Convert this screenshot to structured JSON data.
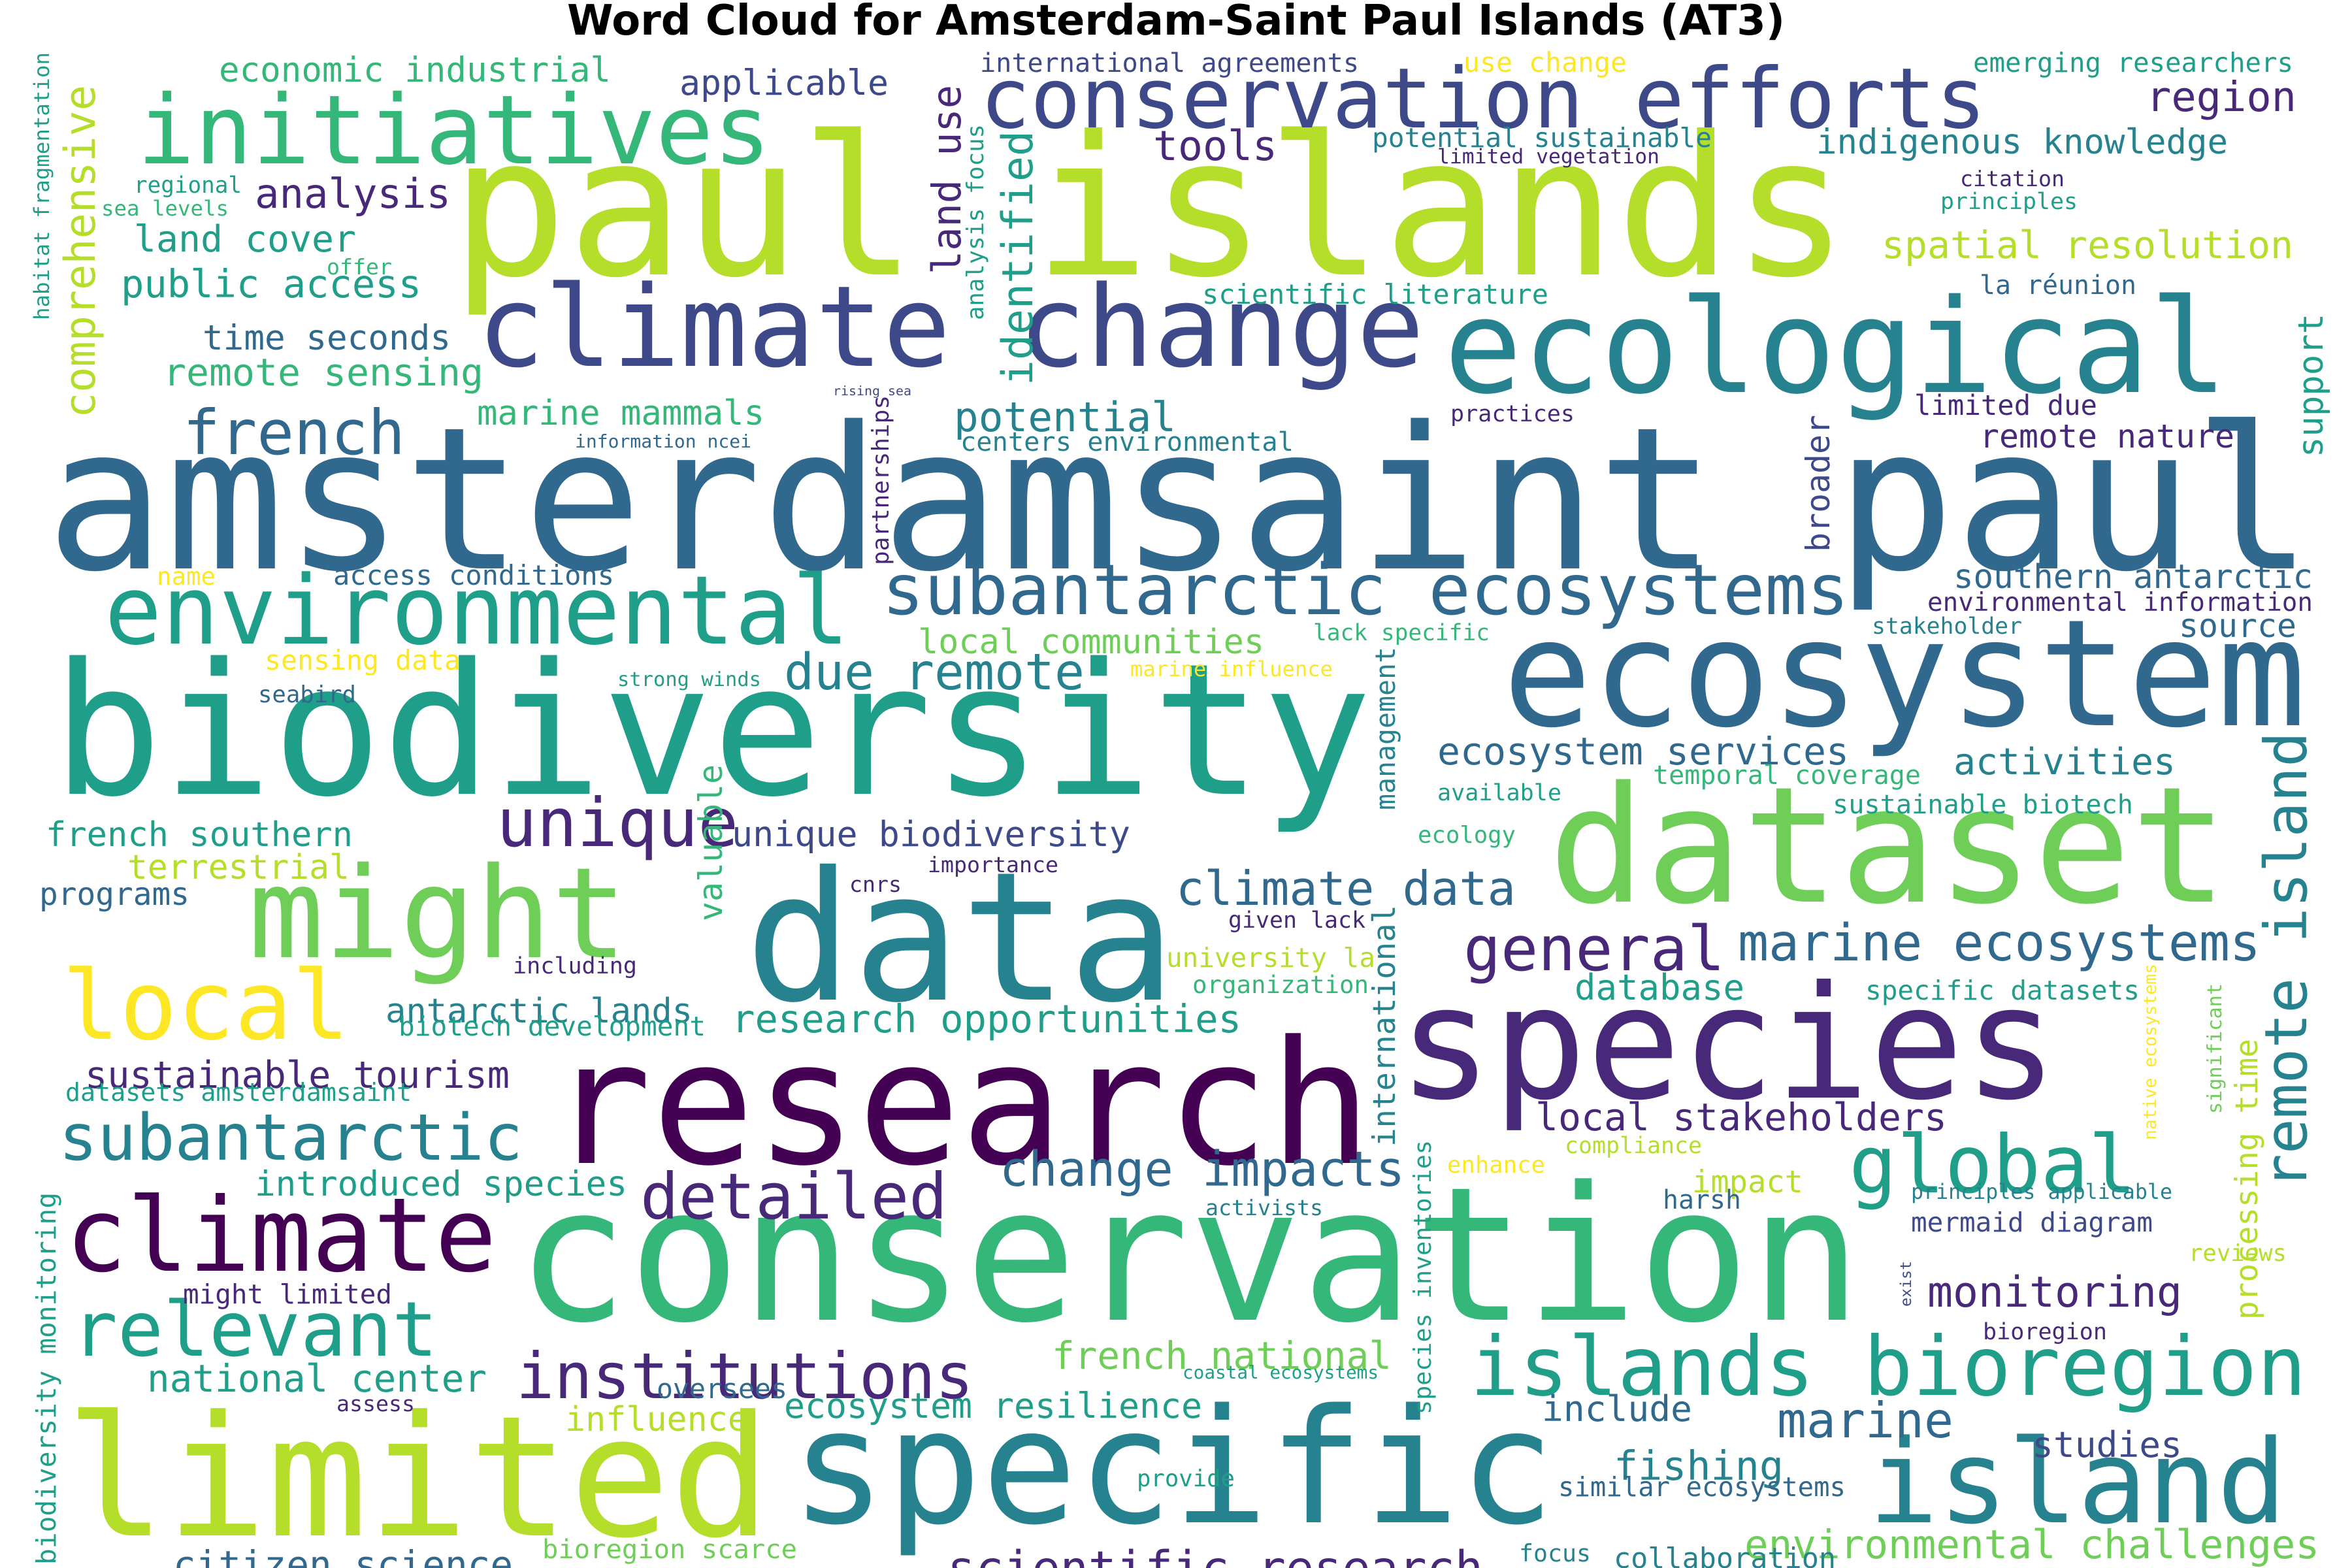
{
  "title": "Word Cloud for Amsterdam-Saint Paul Islands (AT3)",
  "colors": {
    "purple_dark": "#440154",
    "purple": "#482878",
    "indigo": "#3e4989",
    "blue": "#31688e",
    "teal": "#26828e",
    "teal_green": "#1f9e89",
    "green": "#35b779",
    "lime": "#6ece58",
    "yellow_green": "#b5de2b",
    "yellow": "#fde725"
  },
  "words": [
    {
      "text": "amsterdamsaint paul",
      "color": "blue"
    },
    {
      "text": "paul islands",
      "color": "yellow_green"
    },
    {
      "text": "biodiversity",
      "color": "teal_green"
    },
    {
      "text": "conservation",
      "color": "green"
    },
    {
      "text": "research",
      "color": "purple_dark"
    },
    {
      "text": "specific",
      "color": "teal"
    },
    {
      "text": "limited",
      "color": "yellow_green"
    },
    {
      "text": "species",
      "color": "purple"
    },
    {
      "text": "ecosystem",
      "color": "blue"
    },
    {
      "text": "data",
      "color": "teal"
    },
    {
      "text": "dataset",
      "color": "lime"
    },
    {
      "text": "ecological",
      "color": "teal"
    },
    {
      "text": "climate",
      "color": "purple_dark"
    },
    {
      "text": "climate change",
      "color": "indigo"
    },
    {
      "text": "conservation efforts",
      "color": "indigo"
    },
    {
      "text": "initiatives",
      "color": "green"
    },
    {
      "text": "environmental",
      "color": "teal_green"
    },
    {
      "text": "might",
      "color": "lime"
    },
    {
      "text": "local",
      "color": "yellow"
    },
    {
      "text": "islands bioregion",
      "color": "teal_green"
    },
    {
      "text": "remote island",
      "color": "teal"
    },
    {
      "text": "subantarctic ecosystems",
      "color": "blue"
    },
    {
      "text": "island",
      "color": "teal"
    },
    {
      "text": "relevant",
      "color": "teal_green"
    },
    {
      "text": "subantarctic",
      "color": "teal"
    },
    {
      "text": "global",
      "color": "teal_green"
    },
    {
      "text": "institutions",
      "color": "purple"
    },
    {
      "text": "general",
      "color": "purple"
    },
    {
      "text": "french",
      "color": "blue"
    },
    {
      "text": "detailed",
      "color": "purple"
    },
    {
      "text": "unique biodiversity",
      "color": "indigo"
    },
    {
      "text": "unique",
      "color": "purple"
    },
    {
      "text": "marine ecosystems",
      "color": "blue"
    },
    {
      "text": "climate data",
      "color": "blue"
    },
    {
      "text": "change impacts",
      "color": "blue"
    },
    {
      "text": "scientific research",
      "color": "purple"
    },
    {
      "text": "due remote",
      "color": "teal"
    },
    {
      "text": "potential",
      "color": "teal"
    },
    {
      "text": "research opportunities",
      "color": "teal_green"
    },
    {
      "text": "monitoring",
      "color": "purple"
    },
    {
      "text": "activities",
      "color": "teal"
    },
    {
      "text": "marine",
      "color": "blue"
    },
    {
      "text": "fishing",
      "color": "teal"
    },
    {
      "text": "studies",
      "color": "indigo"
    },
    {
      "text": "impact",
      "color": "yellow_green"
    },
    {
      "text": "ecosystem services",
      "color": "blue"
    },
    {
      "text": "french southern",
      "color": "teal_green"
    },
    {
      "text": "antarctic lands",
      "color": "teal"
    },
    {
      "text": "sustainable tourism",
      "color": "purple"
    },
    {
      "text": "introduced species",
      "color": "teal_green"
    },
    {
      "text": "national center",
      "color": "teal_green"
    },
    {
      "text": "citizen science",
      "color": "blue"
    },
    {
      "text": "french national",
      "color": "lime"
    },
    {
      "text": "ecosystem resilience",
      "color": "teal_green"
    },
    {
      "text": "environmental challenges",
      "color": "lime"
    },
    {
      "text": "local stakeholders",
      "color": "purple"
    },
    {
      "text": "local communities",
      "color": "lime"
    },
    {
      "text": "spatial resolution",
      "color": "yellow_green"
    },
    {
      "text": "indigenous knowledge",
      "color": "teal"
    },
    {
      "text": "region",
      "color": "purple"
    },
    {
      "text": "analysis",
      "color": "purple"
    },
    {
      "text": "land cover",
      "color": "teal_green"
    },
    {
      "text": "public access",
      "color": "teal_green"
    },
    {
      "text": "time seconds",
      "color": "blue"
    },
    {
      "text": "remote sensing",
      "color": "green"
    },
    {
      "text": "marine mammals",
      "color": "green"
    },
    {
      "text": "economic industrial",
      "color": "green"
    },
    {
      "text": "applicable",
      "color": "indigo"
    },
    {
      "text": "tools",
      "color": "purple"
    },
    {
      "text": "land use",
      "color": "purple"
    },
    {
      "text": "identified",
      "color": "teal_green"
    },
    {
      "text": "comprehensive",
      "color": "yellow_green"
    },
    {
      "text": "international agreements",
      "color": "indigo"
    },
    {
      "text": "use change",
      "color": "yellow"
    },
    {
      "text": "emerging researchers",
      "color": "teal_green"
    },
    {
      "text": "potential sustainable",
      "color": "teal"
    },
    {
      "text": "limited vegetation",
      "color": "purple"
    },
    {
      "text": "scientific literature",
      "color": "teal_green"
    },
    {
      "text": "la réunion",
      "color": "blue"
    },
    {
      "text": "citation",
      "color": "purple"
    },
    {
      "text": "principles",
      "color": "teal_green"
    },
    {
      "text": "support",
      "color": "teal_green"
    },
    {
      "text": "limited due",
      "color": "purple"
    },
    {
      "text": "remote nature",
      "color": "purple"
    },
    {
      "text": "broader",
      "color": "indigo"
    },
    {
      "text": "practices",
      "color": "purple"
    },
    {
      "text": "rising sea",
      "color": "indigo"
    },
    {
      "text": "partnerships",
      "color": "purple"
    },
    {
      "text": "information ncei",
      "color": "blue"
    },
    {
      "text": "centers environmental",
      "color": "teal"
    },
    {
      "text": "southern antarctic",
      "color": "blue"
    },
    {
      "text": "environmental information",
      "color": "purple"
    },
    {
      "text": "source",
      "color": "blue"
    },
    {
      "text": "stakeholder",
      "color": "teal"
    },
    {
      "text": "lack specific",
      "color": "green"
    },
    {
      "text": "access conditions",
      "color": "blue"
    },
    {
      "text": "name",
      "color": "yellow"
    },
    {
      "text": "sensing data",
      "color": "yellow"
    },
    {
      "text": "seabird",
      "color": "blue"
    },
    {
      "text": "strong winds",
      "color": "teal_green"
    },
    {
      "text": "marine influence",
      "color": "yellow"
    },
    {
      "text": "management",
      "color": "teal"
    },
    {
      "text": "international",
      "color": "teal"
    },
    {
      "text": "valuable",
      "color": "green"
    },
    {
      "text": "available",
      "color": "teal_green"
    },
    {
      "text": "temporal coverage",
      "color": "green"
    },
    {
      "text": "sustainable biotech",
      "color": "teal_green"
    },
    {
      "text": "ecology",
      "color": "green"
    },
    {
      "text": "terrestrial",
      "color": "yellow_green"
    },
    {
      "text": "importance",
      "color": "purple"
    },
    {
      "text": "programs",
      "color": "blue"
    },
    {
      "text": "cnrs",
      "color": "purple"
    },
    {
      "text": "given lack",
      "color": "purple"
    },
    {
      "text": "including",
      "color": "purple"
    },
    {
      "text": "university la",
      "color": "yellow_green"
    },
    {
      "text": "organization",
      "color": "green"
    },
    {
      "text": "database",
      "color": "teal_green"
    },
    {
      "text": "specific datasets",
      "color": "teal_green"
    },
    {
      "text": "native ecosystems",
      "color": "yellow"
    },
    {
      "text": "significant",
      "color": "lime"
    },
    {
      "text": "processing time",
      "color": "yellow_green"
    },
    {
      "text": "biotech development",
      "color": "teal_green"
    },
    {
      "text": "datasets amsterdamsaint",
      "color": "teal_green"
    },
    {
      "text": "enhance",
      "color": "yellow"
    },
    {
      "text": "compliance",
      "color": "yellow_green"
    },
    {
      "text": "activists",
      "color": "teal"
    },
    {
      "text": "species inventories",
      "color": "teal_green"
    },
    {
      "text": "harsh",
      "color": "blue"
    },
    {
      "text": "principles applicable",
      "color": "teal"
    },
    {
      "text": "mermaid diagram",
      "color": "indigo"
    },
    {
      "text": "reviews",
      "color": "yellow_green"
    },
    {
      "text": "exist",
      "color": "indigo"
    },
    {
      "text": "bioregion",
      "color": "purple"
    },
    {
      "text": "might limited",
      "color": "purple"
    },
    {
      "text": "oversees",
      "color": "blue"
    },
    {
      "text": "coastal ecosystems",
      "color": "teal_green"
    },
    {
      "text": "influence",
      "color": "yellow_green"
    },
    {
      "text": "assess",
      "color": "purple"
    },
    {
      "text": "include",
      "color": "blue"
    },
    {
      "text": "similar ecosystems",
      "color": "blue"
    },
    {
      "text": "provide",
      "color": "teal_green"
    },
    {
      "text": "bioregion scarce",
      "color": "lime"
    },
    {
      "text": "focus",
      "color": "teal"
    },
    {
      "text": "collaboration",
      "color": "teal"
    },
    {
      "text": "biodiversity monitoring",
      "color": "teal_green"
    },
    {
      "text": "habitat fragmentation",
      "color": "teal_green"
    },
    {
      "text": "regional",
      "color": "teal_green"
    },
    {
      "text": "sea levels",
      "color": "green"
    },
    {
      "text": "offer",
      "color": "green"
    },
    {
      "text": "analysis focus",
      "color": "teal_green"
    }
  ]
}
